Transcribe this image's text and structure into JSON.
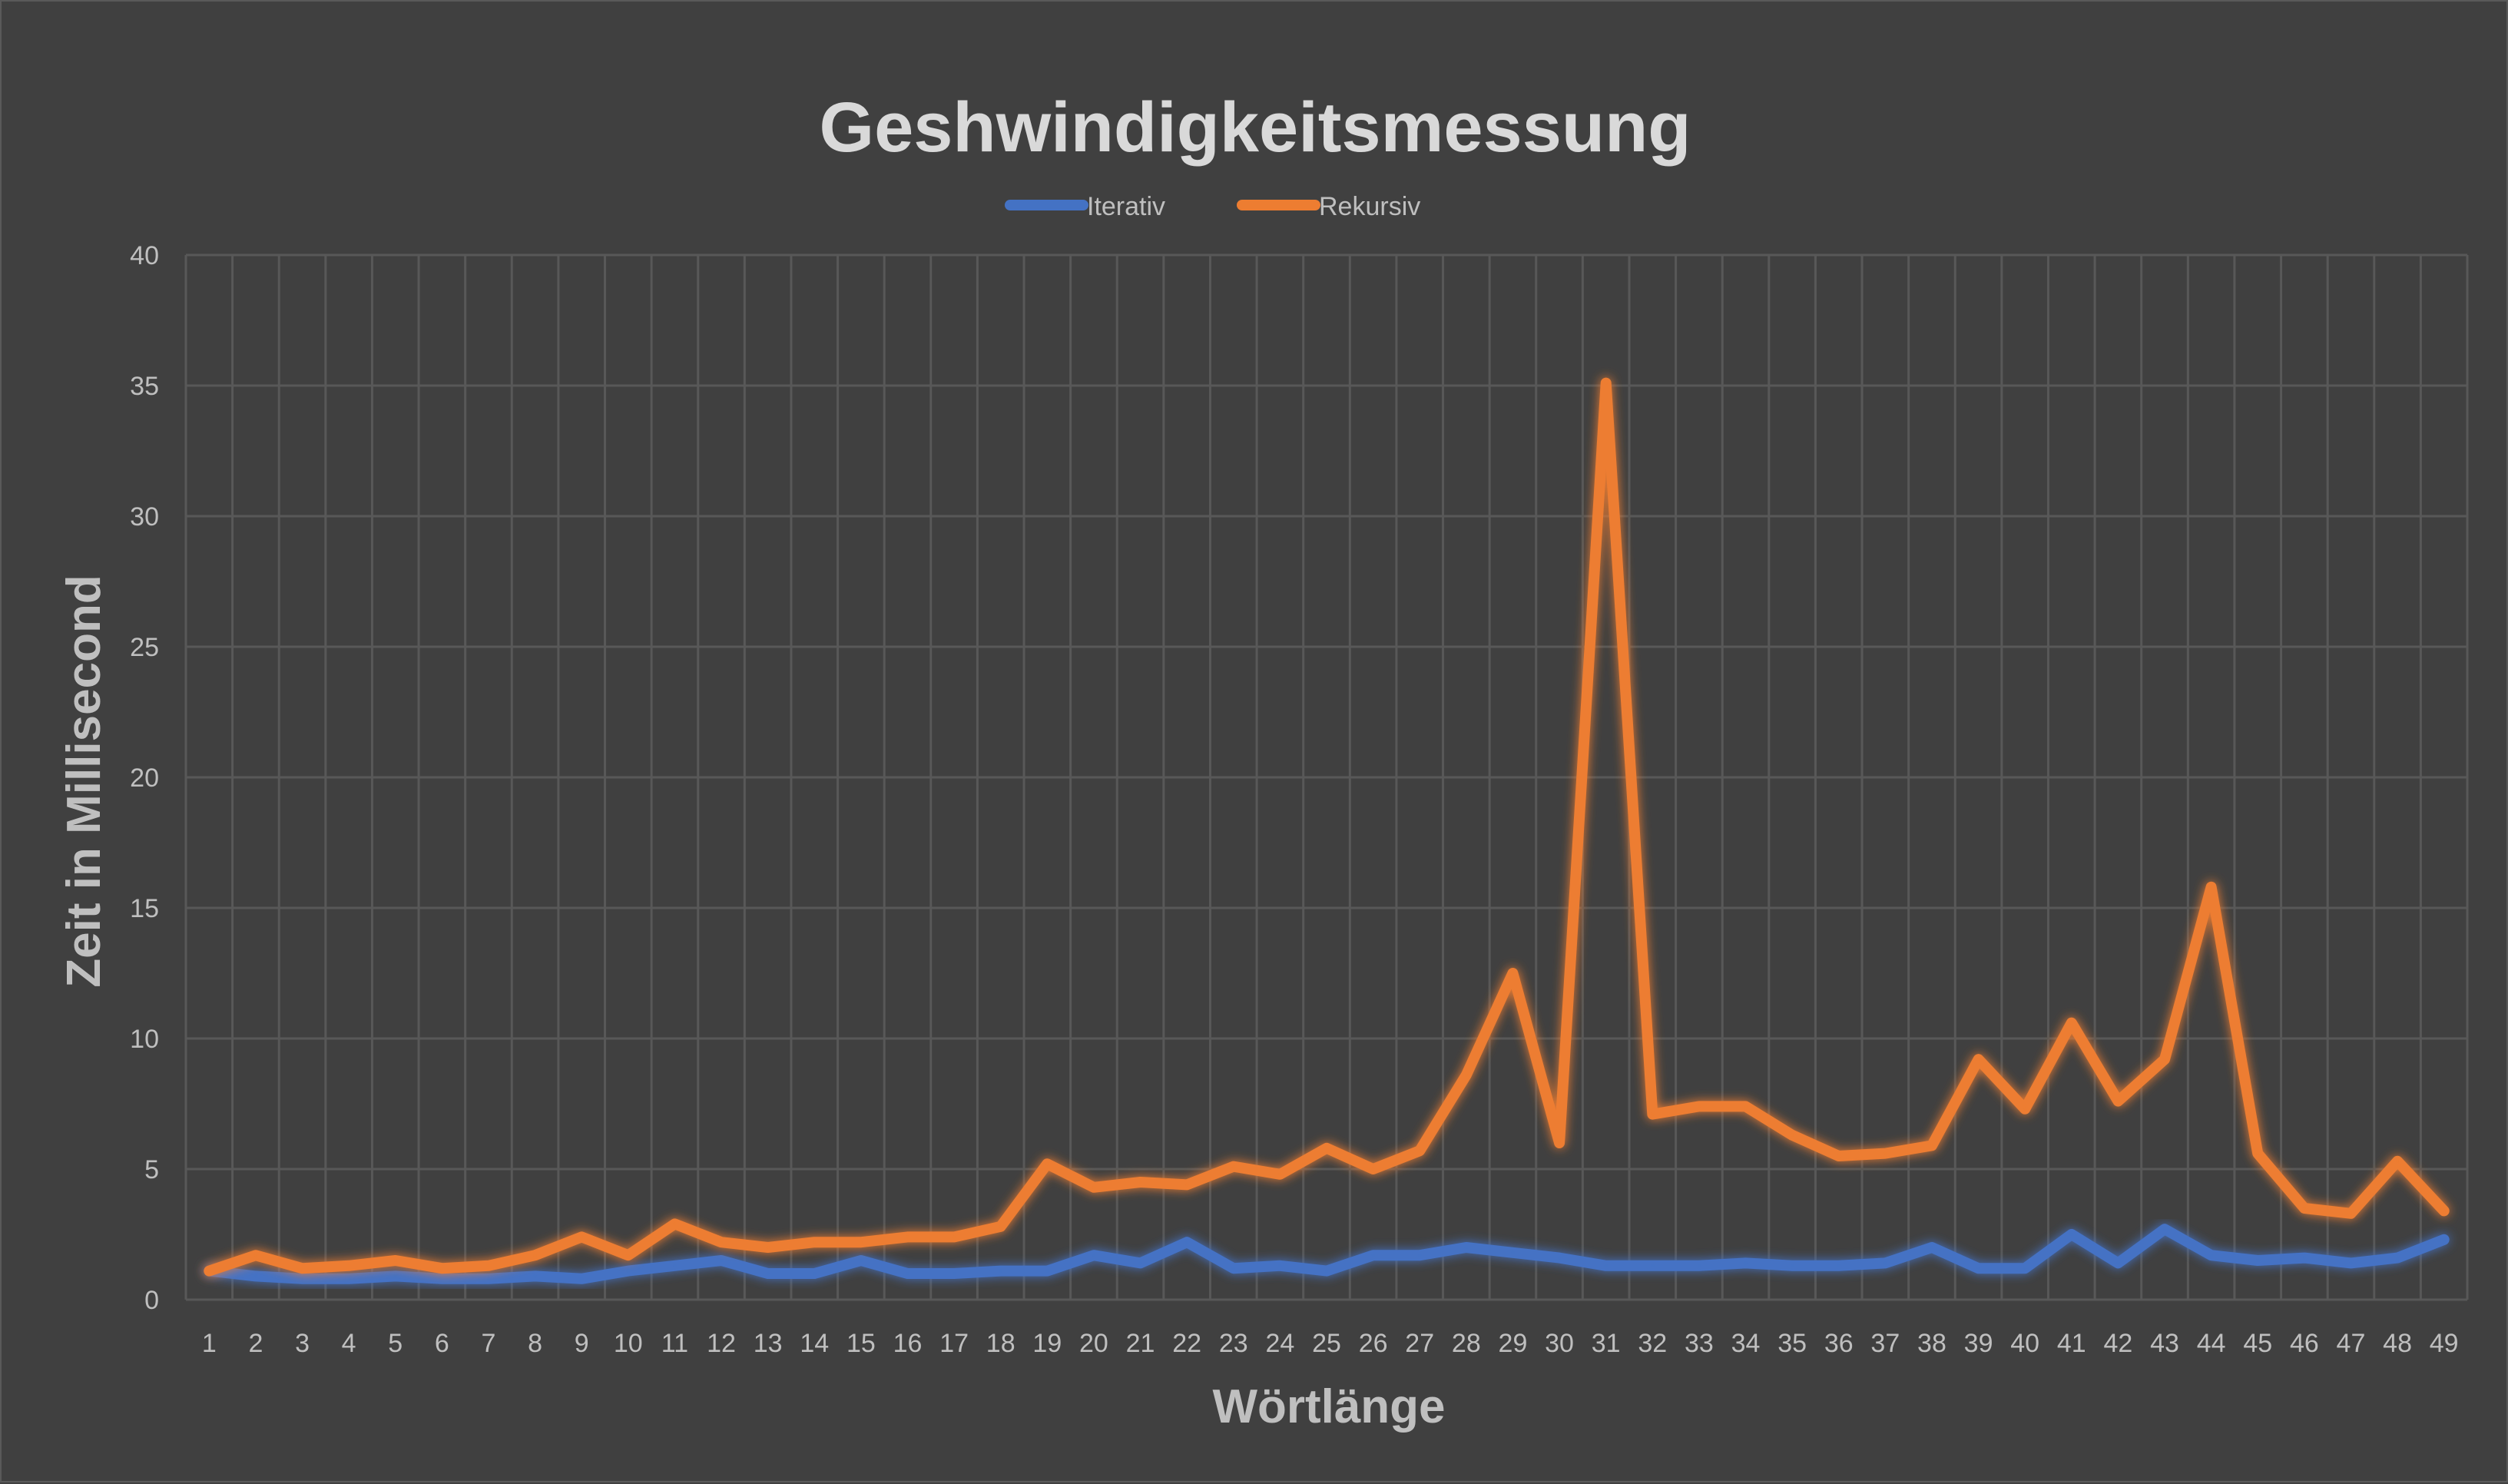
{
  "chart_data": {
    "type": "line",
    "title": "Geshwindigkeitsmessung",
    "xlabel": "Wörtlänge",
    "ylabel": "Zeit in Millisecond",
    "ylim": [
      0,
      40
    ],
    "yticks": [
      0,
      5,
      10,
      15,
      20,
      25,
      30,
      35,
      40
    ],
    "grid": true,
    "legend_position": "top-center",
    "categories": [
      "1",
      "2",
      "3",
      "4",
      "5",
      "6",
      "7",
      "8",
      "9",
      "10",
      "11",
      "12",
      "13",
      "14",
      "15",
      "16",
      "17",
      "18",
      "19",
      "20",
      "21",
      "22",
      "23",
      "24",
      "25",
      "26",
      "27",
      "28",
      "29",
      "30",
      "31",
      "32",
      "33",
      "34",
      "35",
      "36",
      "37",
      "38",
      "39",
      "40",
      "41",
      "42",
      "43",
      "44",
      "45",
      "46",
      "47",
      "48",
      "49"
    ],
    "series": [
      {
        "name": "Iterativ",
        "color": "#4472c4",
        "values": [
          1.1,
          0.9,
          0.8,
          0.8,
          0.9,
          0.8,
          0.8,
          0.9,
          0.8,
          1.1,
          1.3,
          1.5,
          1.0,
          1.0,
          1.5,
          1.0,
          1.0,
          1.1,
          1.1,
          1.7,
          1.4,
          2.2,
          1.2,
          1.3,
          1.1,
          1.7,
          1.7,
          2.0,
          1.8,
          1.6,
          1.3,
          1.3,
          1.3,
          1.4,
          1.3,
          1.3,
          1.4,
          2.0,
          1.2,
          1.2,
          2.5,
          1.4,
          2.7,
          1.7,
          1.5,
          1.6,
          1.4,
          1.6,
          2.3
        ]
      },
      {
        "name": "Rekursiv",
        "color": "#ed7d31",
        "values": [
          1.1,
          1.7,
          1.2,
          1.3,
          1.5,
          1.2,
          1.3,
          1.7,
          2.4,
          1.7,
          2.9,
          2.2,
          2.0,
          2.2,
          2.2,
          2.4,
          2.4,
          2.8,
          5.2,
          4.3,
          4.5,
          4.4,
          5.1,
          4.8,
          5.8,
          5.0,
          5.7,
          8.6,
          12.5,
          6.0,
          35.1,
          7.1,
          7.4,
          7.4,
          6.3,
          5.5,
          5.6,
          5.9,
          9.2,
          7.3,
          10.6,
          7.6,
          9.2,
          15.8,
          5.6,
          3.5,
          3.3,
          5.3,
          3.4
        ]
      }
    ]
  }
}
